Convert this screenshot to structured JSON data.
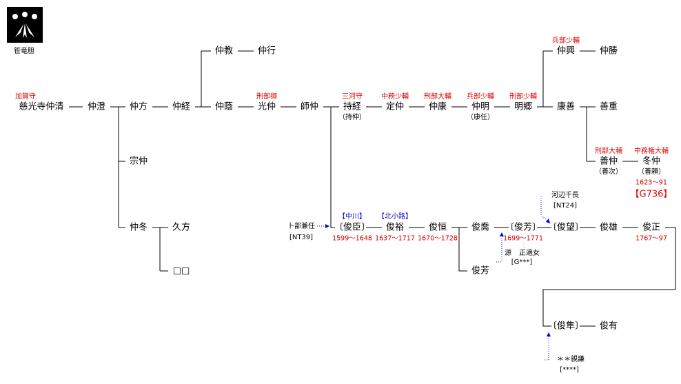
{
  "crest": {
    "label": "笹竜胆"
  },
  "nodes": [
    {
      "name": "慈光寺仲清",
      "title": "加賀守"
    },
    {
      "name": "仲澄"
    },
    {
      "name": "仲方"
    },
    {
      "name": "仲経"
    },
    {
      "name": "仲教"
    },
    {
      "name": "仲行"
    },
    {
      "name": "仲蔭"
    },
    {
      "name": "光仲",
      "title": "刑部卿"
    },
    {
      "name": "師仲"
    },
    {
      "name": "持経",
      "title": "三河守",
      "sub": "（持仲）"
    },
    {
      "name": "定仲",
      "title": "中務少輔"
    },
    {
      "name": "仲康",
      "title": "刑部大輔"
    },
    {
      "name": "仲明",
      "title": "兵部少輔",
      "sub": "（康任）"
    },
    {
      "name": "明郷",
      "title": "刑部少輔"
    },
    {
      "name": "仲興",
      "title": "兵部少輔"
    },
    {
      "name": "仲勝"
    },
    {
      "name": "康善"
    },
    {
      "name": "善重"
    },
    {
      "name": "善仲",
      "title": "刑部大輔",
      "sub": "（善次）"
    },
    {
      "name": "冬仲",
      "title": "中務権大輔",
      "sub": "（善頼）",
      "dates": "1623～91",
      "ref": "【G736】"
    },
    {
      "name": "宗仲"
    },
    {
      "name": "仲冬"
    },
    {
      "name": "久方"
    },
    {
      "name": "□□"
    },
    {
      "name": "〔俊臣〕",
      "family": "【中川】",
      "dates": "1599～1648"
    },
    {
      "name": "俊裕",
      "family": "【北小路】",
      "dates": "1637～1717"
    },
    {
      "name": "俊恒",
      "dates": "1670～1728"
    },
    {
      "name": "俊喬"
    },
    {
      "name": "〔俊芳〕",
      "dates": "1699～1771"
    },
    {
      "name": "俊芳"
    },
    {
      "name": "〔俊望〕"
    },
    {
      "name": "俊雄"
    },
    {
      "name": "俊正",
      "dates": "1767～97"
    },
    {
      "name": "〔俊隼〕"
    },
    {
      "name": "俊有"
    }
  ],
  "notes": [
    {
      "lines": [
        "卜部兼任",
        "[NT39]"
      ]
    },
    {
      "lines": [
        "河辺千長",
        "[NT24]"
      ]
    },
    {
      "lines": [
        "源",
        "正適女",
        "[G***]"
      ]
    },
    {
      "lines": [
        "＊＊親謙",
        "[****]"
      ]
    }
  ]
}
